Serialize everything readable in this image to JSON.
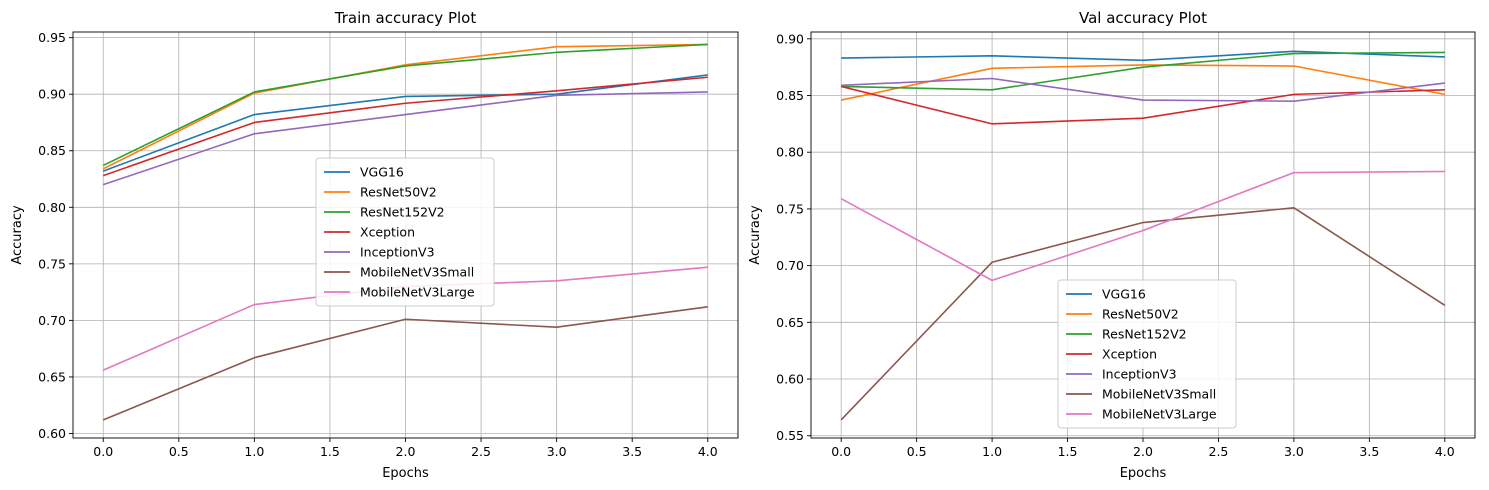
{
  "chart_data": [
    {
      "type": "line",
      "title": "Train accuracy Plot",
      "xlabel": "Epochs",
      "ylabel": "Accuracy",
      "xlim": [
        -0.2,
        4.2
      ],
      "ylim": [
        0.596,
        0.955
      ],
      "xticks": [
        0.0,
        0.5,
        1.0,
        1.5,
        2.0,
        2.5,
        3.0,
        3.5,
        4.0
      ],
      "xtick_labels": [
        "0.0",
        "0.5",
        "1.0",
        "1.5",
        "2.0",
        "2.5",
        "3.0",
        "3.5",
        "4.0"
      ],
      "yticks": [
        0.6,
        0.65,
        0.7,
        0.75,
        0.8,
        0.85,
        0.9,
        0.95
      ],
      "ytick_labels": [
        "0.60",
        "0.65",
        "0.70",
        "0.75",
        "0.80",
        "0.85",
        "0.90",
        "0.95"
      ],
      "grid": true,
      "legend_position": "center",
      "x": [
        0,
        1,
        2,
        3,
        4
      ],
      "series": [
        {
          "name": "VGG16",
          "color": "#1f77b4",
          "values": [
            0.832,
            0.882,
            0.898,
            0.9,
            0.917
          ]
        },
        {
          "name": "ResNet50V2",
          "color": "#ff7f0e",
          "values": [
            0.834,
            0.901,
            0.926,
            0.942,
            0.944
          ]
        },
        {
          "name": "ResNet152V2",
          "color": "#2ca02c",
          "values": [
            0.837,
            0.902,
            0.925,
            0.937,
            0.944
          ]
        },
        {
          "name": "Xception",
          "color": "#d62728",
          "values": [
            0.828,
            0.875,
            0.892,
            0.903,
            0.915
          ]
        },
        {
          "name": "InceptionV3",
          "color": "#9467bd",
          "values": [
            0.82,
            0.865,
            0.882,
            0.899,
            0.902
          ]
        },
        {
          "name": "MobileNetV3Small",
          "color": "#8c564b",
          "values": [
            0.612,
            0.667,
            0.701,
            0.694,
            0.712
          ]
        },
        {
          "name": "MobileNetV3Large",
          "color": "#e377c2",
          "values": [
            0.656,
            0.714,
            0.73,
            0.735,
            0.747
          ]
        }
      ]
    },
    {
      "type": "line",
      "title": "Val accuracy Plot",
      "xlabel": "Epochs",
      "ylabel": "Accuracy",
      "xlim": [
        -0.2,
        4.2
      ],
      "ylim": [
        0.548,
        0.906
      ],
      "xticks": [
        0.0,
        0.5,
        1.0,
        1.5,
        2.0,
        2.5,
        3.0,
        3.5,
        4.0
      ],
      "xtick_labels": [
        "0.0",
        "0.5",
        "1.0",
        "1.5",
        "2.0",
        "2.5",
        "3.0",
        "3.5",
        "4.0"
      ],
      "yticks": [
        0.55,
        0.6,
        0.65,
        0.7,
        0.75,
        0.8,
        0.85,
        0.9
      ],
      "ytick_labels": [
        "0.55",
        "0.60",
        "0.65",
        "0.70",
        "0.75",
        "0.80",
        "0.85",
        "0.90"
      ],
      "grid": true,
      "legend_position": "lower center",
      "x": [
        0,
        1,
        2,
        3,
        4
      ],
      "series": [
        {
          "name": "VGG16",
          "color": "#1f77b4",
          "values": [
            0.883,
            0.885,
            0.881,
            0.889,
            0.884
          ]
        },
        {
          "name": "ResNet50V2",
          "color": "#ff7f0e",
          "values": [
            0.846,
            0.874,
            0.877,
            0.876,
            0.851
          ]
        },
        {
          "name": "ResNet152V2",
          "color": "#2ca02c",
          "values": [
            0.858,
            0.855,
            0.875,
            0.887,
            0.888
          ]
        },
        {
          "name": "Xception",
          "color": "#d62728",
          "values": [
            0.858,
            0.825,
            0.83,
            0.851,
            0.855
          ]
        },
        {
          "name": "InceptionV3",
          "color": "#9467bd",
          "values": [
            0.859,
            0.865,
            0.846,
            0.845,
            0.861
          ]
        },
        {
          "name": "MobileNetV3Small",
          "color": "#8c564b",
          "values": [
            0.564,
            0.703,
            0.738,
            0.751,
            0.665
          ]
        },
        {
          "name": "MobileNetV3Large",
          "color": "#e377c2",
          "values": [
            0.759,
            0.687,
            0.731,
            0.782,
            0.783
          ]
        }
      ]
    }
  ]
}
